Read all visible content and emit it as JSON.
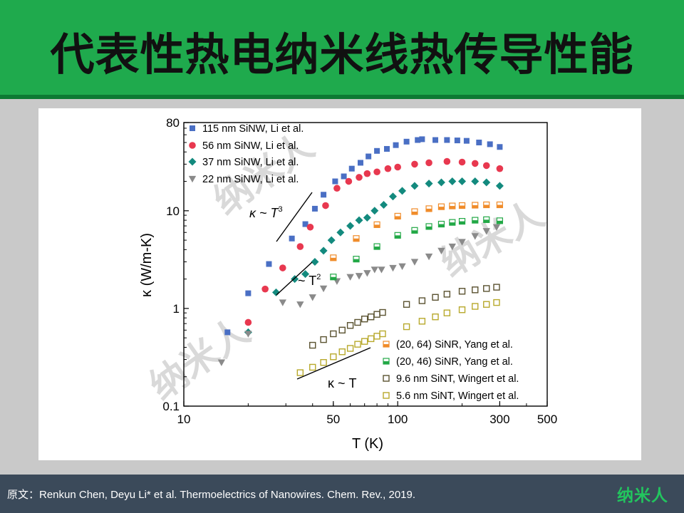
{
  "title": "代表性热电纳米线热传导性能",
  "footer": {
    "citation": "原文：Renkun Chen, Deyu Li* et al. Thermoelectrics of Nanowires. Chem. Rev., 2019.",
    "logo": "纳米人"
  },
  "watermark": "纳米人",
  "chart_data": {
    "type": "scatter",
    "x_scale": "log",
    "y_scale": "log",
    "xlim": [
      10,
      500
    ],
    "ylim": [
      0.1,
      80
    ],
    "xlabel": "T (K)",
    "ylabel": "κ (W/m-K)",
    "x_ticks": [
      10,
      50,
      100,
      300,
      500
    ],
    "y_ticks": [
      0.1,
      1,
      10,
      80
    ],
    "series": [
      {
        "name": "115 nm SiNW, Li et al.",
        "marker": "square-filled",
        "color": "#4a6fc4",
        "points": [
          [
            16,
            0.57
          ],
          [
            20,
            1.43
          ],
          [
            25,
            2.85
          ],
          [
            32,
            5.2
          ],
          [
            37,
            7.3
          ],
          [
            41,
            10.5
          ],
          [
            45,
            14.6
          ],
          [
            51,
            20
          ],
          [
            56,
            22.5
          ],
          [
            61,
            27
          ],
          [
            67,
            31
          ],
          [
            73,
            36
          ],
          [
            80,
            41
          ],
          [
            89,
            43
          ],
          [
            98,
            47
          ],
          [
            110,
            51
          ],
          [
            124,
            53
          ],
          [
            130,
            54
          ],
          [
            150,
            53
          ],
          [
            170,
            53
          ],
          [
            190,
            52.5
          ],
          [
            210,
            52
          ],
          [
            240,
            50
          ],
          [
            270,
            48
          ],
          [
            300,
            45
          ]
        ]
      },
      {
        "name": "56 nm SiNW, Li et al.",
        "marker": "circle-filled",
        "color": "#e8384f",
        "points": [
          [
            20,
            0.72
          ],
          [
            24,
            1.58
          ],
          [
            29,
            2.6
          ],
          [
            35,
            4.3
          ],
          [
            39,
            6.8
          ],
          [
            46,
            11.3
          ],
          [
            52,
            17
          ],
          [
            59,
            20
          ],
          [
            66,
            22
          ],
          [
            72,
            24
          ],
          [
            80,
            25
          ],
          [
            90,
            27
          ],
          [
            100,
            28
          ],
          [
            120,
            30
          ],
          [
            140,
            31
          ],
          [
            170,
            32
          ],
          [
            200,
            31.5
          ],
          [
            230,
            30.5
          ],
          [
            260,
            29
          ],
          [
            300,
            27
          ]
        ]
      },
      {
        "name": "37 nm SiNW, Li et al.",
        "marker": "diamond-filled",
        "color": "#138a7e",
        "points": [
          [
            20,
            0.57
          ],
          [
            27,
            1.46
          ],
          [
            33,
            2
          ],
          [
            37,
            2.25
          ],
          [
            41,
            3
          ],
          [
            45,
            3.9
          ],
          [
            49,
            5
          ],
          [
            54,
            6
          ],
          [
            60,
            7
          ],
          [
            66,
            8
          ],
          [
            72,
            8.5
          ],
          [
            78,
            10
          ],
          [
            86,
            11.5
          ],
          [
            95,
            14
          ],
          [
            105,
            16
          ],
          [
            120,
            18
          ],
          [
            140,
            19
          ],
          [
            160,
            19.5
          ],
          [
            180,
            20
          ],
          [
            200,
            20
          ],
          [
            230,
            20
          ],
          [
            260,
            19.5
          ],
          [
            300,
            18
          ]
        ]
      },
      {
        "name": "22 nm SiNW, Li et al.",
        "marker": "triangle-down-filled",
        "color": "#8a8a8a",
        "points": [
          [
            15,
            0.28
          ],
          [
            20,
            0.55
          ],
          [
            29,
            1.15
          ],
          [
            35,
            1.1
          ],
          [
            40,
            1.3
          ],
          [
            45,
            1.6
          ],
          [
            52,
            1.9
          ],
          [
            60,
            2.1
          ],
          [
            66,
            2.15
          ],
          [
            72,
            2.3
          ],
          [
            78,
            2.5
          ],
          [
            84,
            2.5
          ],
          [
            95,
            2.6
          ],
          [
            105,
            2.7
          ],
          [
            120,
            3
          ],
          [
            140,
            3.4
          ],
          [
            160,
            3.9
          ],
          [
            180,
            4.3
          ],
          [
            200,
            4.8
          ],
          [
            230,
            5.5
          ],
          [
            260,
            6.2
          ],
          [
            290,
            6.8
          ]
        ]
      },
      {
        "name": "(20, 64) SiNR, Yang et al.",
        "marker": "square-half",
        "color": "#f08c2a",
        "points": [
          [
            50,
            3.3
          ],
          [
            64,
            5.2
          ],
          [
            80,
            7.2
          ],
          [
            100,
            8.8
          ],
          [
            120,
            9.8
          ],
          [
            140,
            10.5
          ],
          [
            160,
            11
          ],
          [
            180,
            11.2
          ],
          [
            200,
            11.3
          ],
          [
            230,
            11.4
          ],
          [
            260,
            11.5
          ],
          [
            300,
            11.5
          ]
        ]
      },
      {
        "name": "(20, 46) SiNR, Yang et al.",
        "marker": "square-half",
        "color": "#22a846",
        "points": [
          [
            50,
            2.1
          ],
          [
            64,
            3.2
          ],
          [
            80,
            4.3
          ],
          [
            100,
            5.6
          ],
          [
            120,
            6.3
          ],
          [
            140,
            6.9
          ],
          [
            160,
            7.3
          ],
          [
            180,
            7.6
          ],
          [
            200,
            7.8
          ],
          [
            230,
            8
          ],
          [
            260,
            8.1
          ],
          [
            300,
            7.9
          ]
        ]
      },
      {
        "name": "9.6 nm SiNT, Wingert et al.",
        "marker": "square-open",
        "color": "#5a5230",
        "points": [
          [
            40,
            0.42
          ],
          [
            45,
            0.48
          ],
          [
            50,
            0.55
          ],
          [
            55,
            0.6
          ],
          [
            60,
            0.67
          ],
          [
            65,
            0.72
          ],
          [
            70,
            0.78
          ],
          [
            75,
            0.82
          ],
          [
            80,
            0.87
          ],
          [
            85,
            0.91
          ],
          [
            110,
            1.1
          ],
          [
            130,
            1.2
          ],
          [
            150,
            1.3
          ],
          [
            170,
            1.4
          ],
          [
            200,
            1.5
          ],
          [
            230,
            1.55
          ],
          [
            260,
            1.6
          ],
          [
            290,
            1.65
          ]
        ]
      },
      {
        "name": "5.6 nm SiNT, Wingert et al.",
        "marker": "square-open",
        "color": "#b8a92c",
        "points": [
          [
            35,
            0.22
          ],
          [
            40,
            0.25
          ],
          [
            45,
            0.28
          ],
          [
            50,
            0.32
          ],
          [
            55,
            0.36
          ],
          [
            60,
            0.39
          ],
          [
            65,
            0.43
          ],
          [
            70,
            0.46
          ],
          [
            75,
            0.49
          ],
          [
            80,
            0.52
          ],
          [
            85,
            0.55
          ],
          [
            110,
            0.65
          ],
          [
            130,
            0.74
          ],
          [
            150,
            0.82
          ],
          [
            170,
            0.9
          ],
          [
            200,
            0.97
          ],
          [
            230,
            1.05
          ],
          [
            260,
            1.1
          ],
          [
            290,
            1.15
          ]
        ]
      }
    ],
    "annotations": [
      {
        "text": "κ ~ T",
        "superscript": "3"
      },
      {
        "text": "~ T",
        "superscript": "2"
      },
      {
        "text": "κ ~ T",
        "superscript": ""
      }
    ]
  }
}
